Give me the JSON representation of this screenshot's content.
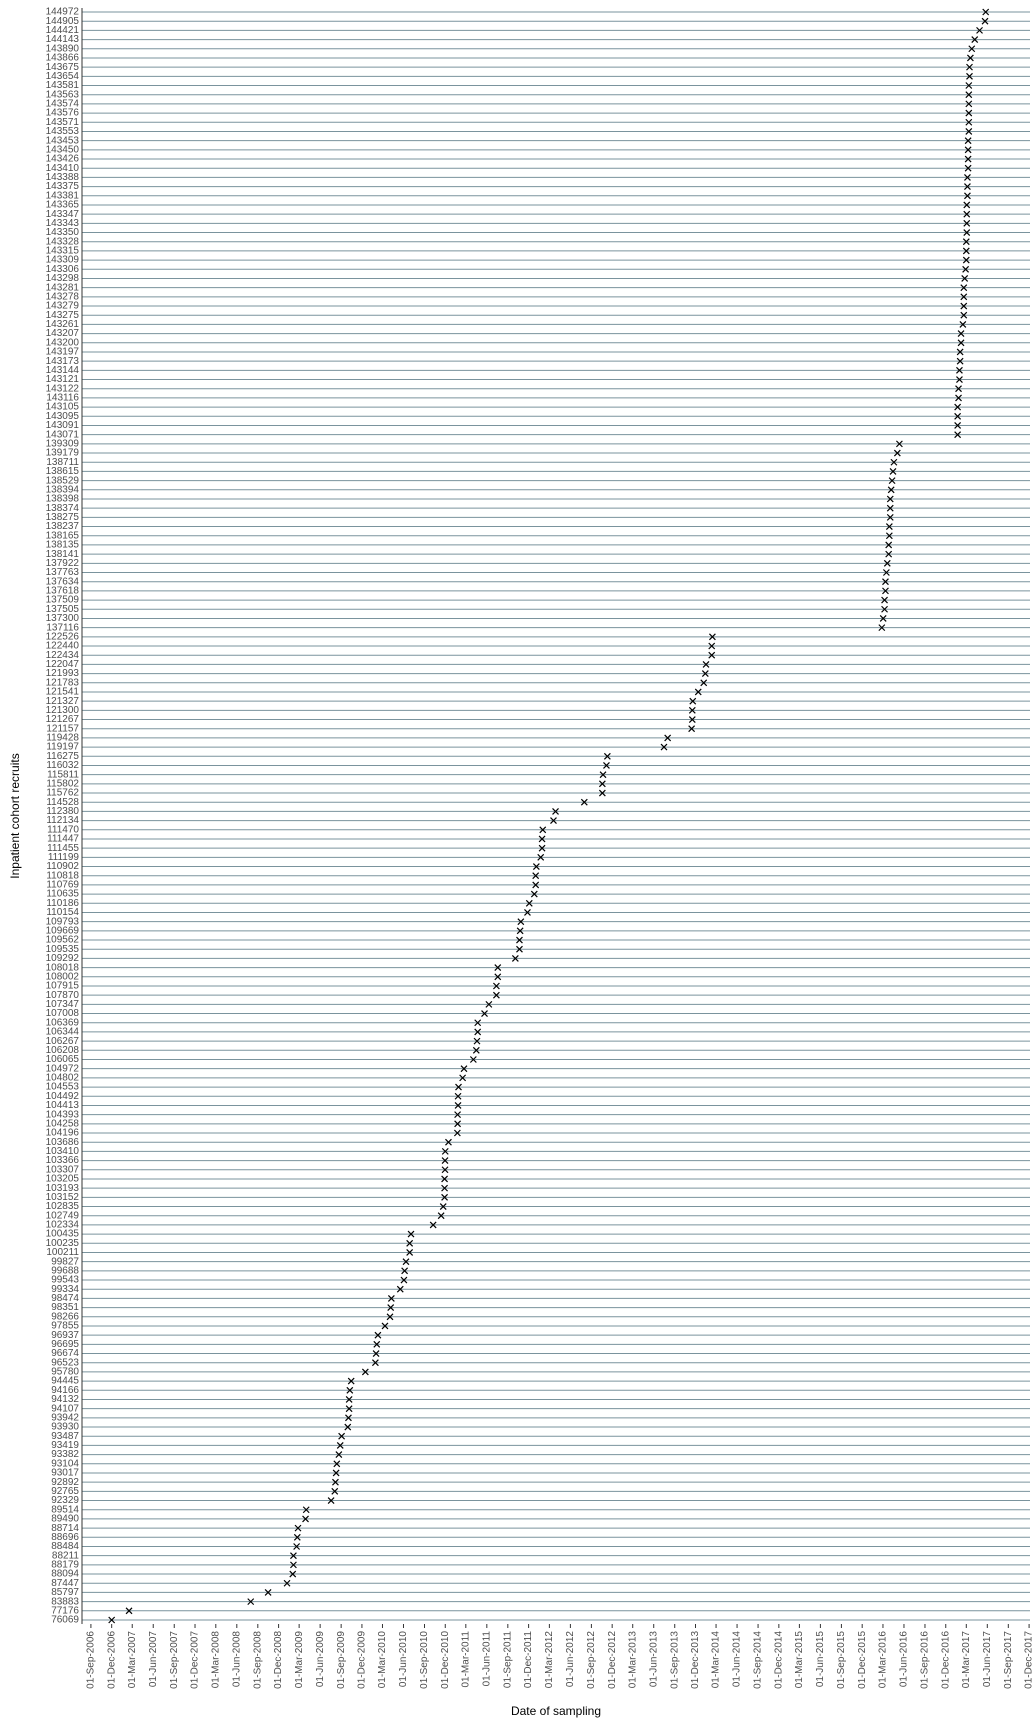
{
  "chart_data": {
    "type": "scatter",
    "x_label": "Date of sampling",
    "y_label": "Inpatient cohort recruits",
    "marker": "x",
    "color": "#000000",
    "row_line_color": "#7a939d",
    "categories": [
      "144972",
      "144905",
      "144421",
      "144143",
      "143890",
      "143866",
      "143675",
      "143654",
      "143581",
      "143563",
      "143574",
      "143576",
      "143571",
      "143553",
      "143453",
      "143450",
      "143426",
      "143410",
      "143388",
      "143375",
      "143381",
      "143365",
      "143347",
      "143343",
      "143350",
      "143328",
      "143315",
      "143309",
      "143306",
      "143298",
      "143281",
      "143278",
      "143279",
      "143275",
      "143261",
      "143207",
      "143200",
      "143197",
      "143173",
      "143144",
      "143121",
      "143122",
      "143116",
      "143105",
      "143095",
      "143091",
      "143071",
      "139309",
      "139179",
      "138711",
      "138615",
      "138529",
      "138394",
      "138398",
      "138374",
      "138275",
      "138237",
      "138165",
      "138135",
      "138141",
      "137922",
      "137763",
      "137634",
      "137618",
      "137509",
      "137505",
      "137300",
      "137116",
      "122526",
      "122440",
      "122434",
      "122047",
      "121993",
      "121783",
      "121541",
      "121327",
      "121300",
      "121267",
      "121157",
      "119428",
      "119197",
      "116275",
      "116032",
      "115811",
      "115802",
      "115762",
      "114528",
      "112380",
      "112134",
      "111470",
      "111447",
      "111455",
      "111199",
      "110902",
      "110818",
      "110769",
      "110635",
      "110186",
      "110154",
      "109793",
      "109669",
      "109562",
      "109535",
      "109292",
      "108018",
      "108002",
      "107915",
      "107870",
      "107347",
      "107008",
      "106369",
      "106344",
      "106267",
      "106208",
      "106065",
      "104972",
      "104802",
      "104553",
      "104492",
      "104413",
      "104393",
      "104258",
      "104196",
      "103686",
      "103410",
      "103366",
      "103307",
      "103205",
      "103193",
      "103152",
      "102835",
      "102749",
      "102334",
      "100435",
      "100235",
      "100211",
      "99827",
      "99688",
      "99543",
      "99334",
      "98474",
      "98351",
      "98266",
      "97855",
      "96937",
      "96695",
      "96674",
      "96523",
      "95780",
      "94445",
      "94166",
      "94132",
      "94107",
      "93942",
      "93930",
      "93487",
      "93419",
      "93382",
      "93104",
      "93017",
      "92892",
      "92765",
      "92329",
      "89514",
      "89490",
      "88714",
      "88696",
      "88484",
      "88211",
      "88179",
      "88094",
      "87447",
      "85797",
      "83883",
      "77176",
      "76069"
    ],
    "values": [
      "2017-05-25",
      "2017-05-22",
      "2017-04-28",
      "2017-04-07",
      "2017-03-25",
      "2017-03-19",
      "2017-03-15",
      "2017-03-15",
      "2017-03-12",
      "2017-03-12",
      "2017-03-12",
      "2017-03-12",
      "2017-03-12",
      "2017-03-12",
      "2017-03-09",
      "2017-03-09",
      "2017-03-09",
      "2017-03-09",
      "2017-03-06",
      "2017-03-06",
      "2017-03-06",
      "2017-03-03",
      "2017-03-03",
      "2017-03-03",
      "2017-03-03",
      "2017-03-01",
      "2017-03-01",
      "2017-03-01",
      "2017-02-26",
      "2017-02-22",
      "2017-02-18",
      "2017-02-18",
      "2017-02-18",
      "2017-02-18",
      "2017-02-14",
      "2017-02-06",
      "2017-02-06",
      "2017-02-02",
      "2017-02-02",
      "2017-01-30",
      "2017-01-30",
      "2017-01-26",
      "2017-01-26",
      "2017-01-22",
      "2017-01-22",
      "2017-01-22",
      "2017-01-22",
      "2016-05-12",
      "2016-05-03",
      "2016-04-18",
      "2016-04-14",
      "2016-04-10",
      "2016-04-06",
      "2016-04-02",
      "2016-04-02",
      "2016-04-02",
      "2016-03-29",
      "2016-03-29",
      "2016-03-26",
      "2016-03-26",
      "2016-03-20",
      "2016-03-16",
      "2016-03-12",
      "2016-03-12",
      "2016-03-08",
      "2016-03-08",
      "2016-03-02",
      "2016-02-25",
      "2014-02-13",
      "2014-02-10",
      "2014-02-10",
      "2014-01-16",
      "2014-01-13",
      "2014-01-06",
      "2013-12-13",
      "2013-11-19",
      "2013-11-17",
      "2013-11-17",
      "2013-11-14",
      "2013-08-01",
      "2013-07-16",
      "2012-11-10",
      "2012-11-06",
      "2012-10-22",
      "2012-10-19",
      "2012-10-19",
      "2012-08-01",
      "2012-03-28",
      "2012-03-19",
      "2012-02-01",
      "2012-01-29",
      "2012-01-29",
      "2012-01-23",
      "2012-01-04",
      "2012-01-01",
      "2012-01-01",
      "2011-12-26",
      "2011-12-04",
      "2011-11-26",
      "2011-10-28",
      "2011-10-25",
      "2011-10-22",
      "2011-10-22",
      "2011-10-04",
      "2011-07-19",
      "2011-07-19",
      "2011-07-13",
      "2011-07-13",
      "2011-06-10",
      "2011-05-22",
      "2011-04-22",
      "2011-04-22",
      "2011-04-19",
      "2011-04-16",
      "2011-04-03",
      "2011-02-21",
      "2011-02-15",
      "2011-01-28",
      "2011-01-26",
      "2011-01-26",
      "2011-01-24",
      "2011-01-24",
      "2011-01-23",
      "2010-12-15",
      "2010-12-01",
      "2010-11-30",
      "2010-11-30",
      "2010-11-28",
      "2010-11-28",
      "2010-11-28",
      "2010-11-22",
      "2010-11-13",
      "2010-10-09",
      "2010-07-04",
      "2010-06-28",
      "2010-06-28",
      "2010-06-12",
      "2010-06-06",
      "2010-06-03",
      "2010-05-18",
      "2010-04-09",
      "2010-04-06",
      "2010-04-03",
      "2010-03-12",
      "2010-02-09",
      "2010-02-04",
      "2010-02-01",
      "2010-01-29",
      "2009-12-16",
      "2009-10-15",
      "2009-10-09",
      "2009-10-06",
      "2009-10-06",
      "2009-10-03",
      "2009-09-30",
      "2009-09-03",
      "2009-08-28",
      "2009-08-22",
      "2009-08-13",
      "2009-08-10",
      "2009-08-07",
      "2009-08-04",
      "2009-07-19",
      "2009-04-01",
      "2009-03-29",
      "2009-02-24",
      "2009-02-21",
      "2009-02-18",
      "2009-02-04",
      "2009-02-04",
      "2009-02-01",
      "2009-01-07",
      "2008-10-16",
      "2008-08-01",
      "2007-02-15",
      "2006-12-01"
    ],
    "xlim": [
      "2006-07-24",
      "2017-12-05"
    ],
    "xticks": [
      {
        "value": "2006-09-01",
        "label": "01-Sep-2006"
      },
      {
        "value": "2006-12-01",
        "label": "01-Dec-2006"
      },
      {
        "value": "2007-03-01",
        "label": "01-Mar-2007"
      },
      {
        "value": "2007-06-01",
        "label": "01-Jun-2007"
      },
      {
        "value": "2007-09-01",
        "label": "01-Sep-2007"
      },
      {
        "value": "2007-12-01",
        "label": "01-Dec-2007"
      },
      {
        "value": "2008-03-01",
        "label": "01-Mar-2008"
      },
      {
        "value": "2008-06-01",
        "label": "01-Jun-2008"
      },
      {
        "value": "2008-09-01",
        "label": "01-Sep-2008"
      },
      {
        "value": "2008-12-01",
        "label": "01-Dec-2008"
      },
      {
        "value": "2009-03-01",
        "label": "01-Mar-2009"
      },
      {
        "value": "2009-06-01",
        "label": "01-Jun-2009"
      },
      {
        "value": "2009-09-01",
        "label": "01-Sep-2009"
      },
      {
        "value": "2009-12-01",
        "label": "01-Dec-2009"
      },
      {
        "value": "2010-03-01",
        "label": "01-Mar-2010"
      },
      {
        "value": "2010-06-01",
        "label": "01-Jun-2010"
      },
      {
        "value": "2010-09-01",
        "label": "01-Sep-2010"
      },
      {
        "value": "2010-12-01",
        "label": "01-Dec-2010"
      },
      {
        "value": "2011-03-01",
        "label": "01-Mar-2011"
      },
      {
        "value": "2011-06-01",
        "label": "01-Jun-2011"
      },
      {
        "value": "2011-09-01",
        "label": "01-Sep-2011"
      },
      {
        "value": "2011-12-01",
        "label": "01-Dec-2011"
      },
      {
        "value": "2012-03-01",
        "label": "01-Mar-2012"
      },
      {
        "value": "2012-06-01",
        "label": "01-Jun-2012"
      },
      {
        "value": "2012-09-01",
        "label": "01-Sep-2012"
      },
      {
        "value": "2012-12-01",
        "label": "01-Dec-2012"
      },
      {
        "value": "2013-03-01",
        "label": "01-Mar-2013"
      },
      {
        "value": "2013-06-01",
        "label": "01-Jun-2013"
      },
      {
        "value": "2013-09-01",
        "label": "01-Sep-2013"
      },
      {
        "value": "2013-12-01",
        "label": "01-Dec-2013"
      },
      {
        "value": "2014-03-01",
        "label": "01-Mar-2014"
      },
      {
        "value": "2014-06-01",
        "label": "01-Jun-2014"
      },
      {
        "value": "2014-09-01",
        "label": "01-Sep-2014"
      },
      {
        "value": "2014-12-01",
        "label": "01-Dec-2014"
      },
      {
        "value": "2015-03-01",
        "label": "01-Mar-2015"
      },
      {
        "value": "2015-06-01",
        "label": "01-Jun-2015"
      },
      {
        "value": "2015-09-01",
        "label": "01-Sep-2015"
      },
      {
        "value": "2015-12-01",
        "label": "01-Dec-2015"
      },
      {
        "value": "2016-03-01",
        "label": "01-Mar-2016"
      },
      {
        "value": "2016-06-01",
        "label": "01-Jun-2016"
      },
      {
        "value": "2016-09-01",
        "label": "01-Sep-2016"
      },
      {
        "value": "2016-12-01",
        "label": "01-Dec-2016"
      },
      {
        "value": "2017-03-01",
        "label": "01-Mar-2017"
      },
      {
        "value": "2017-06-01",
        "label": "01-Jun-2017"
      },
      {
        "value": "2017-09-01",
        "label": "01-Sep-2017"
      },
      {
        "value": "2017-12-01",
        "label": "01-Dec-2017"
      }
    ]
  }
}
